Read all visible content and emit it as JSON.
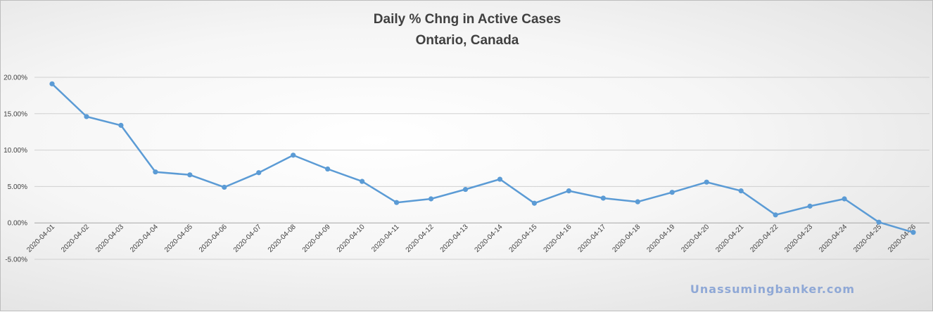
{
  "chart_data": {
    "type": "line",
    "title": "Daily % Chng in Active Cases",
    "subtitle": "Ontario, Canada",
    "categories": [
      "2020-04-01",
      "2020-04-02",
      "2020-04-03",
      "2020-04-04",
      "2020-04-05",
      "2020-04-06",
      "2020-04-07",
      "2020-04-08",
      "2020-04-09",
      "2020-04-10",
      "2020-04-11",
      "2020-04-12",
      "2020-04-13",
      "2020-04-14",
      "2020-04-15",
      "2020-04-16",
      "2020-04-17",
      "2020-04-18",
      "2020-04-19",
      "2020-04-20",
      "2020-04-21",
      "2020-04-22",
      "2020-04-23",
      "2020-04-24",
      "2020-04-25",
      "2020-04-26"
    ],
    "series": [
      {
        "values": [
          0.191,
          0.146,
          0.134,
          0.07,
          0.066,
          0.049,
          0.069,
          0.093,
          0.074,
          0.057,
          0.028,
          0.033,
          0.046,
          0.06,
          0.027,
          0.044,
          0.034,
          0.029,
          0.042,
          0.056,
          0.044,
          0.011,
          0.023,
          0.033,
          0.001,
          -0.013
        ]
      }
    ],
    "yticks": [
      "20.00%",
      "15.00%",
      "10.00%",
      "5.00%",
      "0.00%",
      "-5.00%"
    ],
    "ytick_values": [
      0.2,
      0.15,
      0.1,
      0.05,
      0.0,
      -0.05
    ],
    "ylim": [
      -0.05,
      0.2
    ],
    "xlabel": "",
    "ylabel": "",
    "grid": true,
    "legend": "none",
    "colors": {
      "line": "#5b9bd5",
      "gridline": "#d0d0d0",
      "zero_line": "#a6a6a6",
      "text": "#404040",
      "watermark": "#8fa8d6"
    }
  },
  "watermark": "Unassumingbanker.com"
}
